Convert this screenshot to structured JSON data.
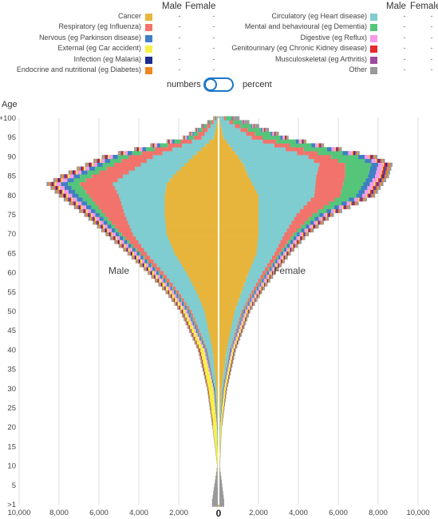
{
  "legend": {
    "col_male": "Male",
    "col_female": "Female",
    "left": [
      {
        "label": "Cancer",
        "color": "#e8b53c",
        "male": "-",
        "female": "-"
      },
      {
        "label": "Respiratory (eg Influenza)",
        "color": "#f2736b",
        "male": "-",
        "female": "-"
      },
      {
        "label": "Nervous (eg Parkinson disease)",
        "color": "#3f7fc3",
        "male": "-",
        "female": "-"
      },
      {
        "label": "External (eg Car accident)",
        "color": "#f8f04a",
        "male": "-",
        "female": "-"
      },
      {
        "label": "Infection (eg Malaria)",
        "color": "#1b2c8c",
        "male": "-",
        "female": "-"
      },
      {
        "label": "Endocrine and nutritional (eg Diabetes)",
        "color": "#f0861f",
        "male": "-",
        "female": "-"
      }
    ],
    "right": [
      {
        "label": "Circulatory (eg Heart disease)",
        "color": "#7fcdd0",
        "male": "-",
        "female": "-"
      },
      {
        "label": "Mental and behavioural (eg Dementia)",
        "color": "#55c57a",
        "male": "-",
        "female": "-"
      },
      {
        "label": "Digestive (eg Reflux)",
        "color": "#f69ae8",
        "male": "-",
        "female": "-"
      },
      {
        "label": "Genitourinary (eg Chronic Kidney disease)",
        "color": "#e8282b",
        "male": "-",
        "female": "-"
      },
      {
        "label": "Musculoskeletal (eg Arthritis)",
        "color": "#9c4b9e",
        "male": "-",
        "female": "-"
      },
      {
        "label": "Other",
        "color": "#999999",
        "male": "-",
        "female": "-"
      }
    ]
  },
  "toggle": {
    "left_label": "numbers",
    "right_label": "percent",
    "state": "numbers"
  },
  "chart_data": {
    "type": "bar",
    "orientation": "horizontal-population-pyramid",
    "ylabel": "Age",
    "y_ticks": [
      "+100",
      "95",
      "90",
      "85",
      "80",
      "75",
      "70",
      "65",
      "60",
      "55",
      "50",
      "45",
      "40",
      "35",
      "30",
      "25",
      "20",
      "15",
      "10",
      "5",
      ">1"
    ],
    "x_ticks_left": [
      "10,000",
      "8,000",
      "6,000",
      "4,000",
      "2,000"
    ],
    "x_ticks_right": [
      "2,000",
      "4,000",
      "6,000",
      "8,000",
      "10,000"
    ],
    "x_zero": "0",
    "xlim": [
      -10000,
      10000
    ],
    "ylim": [
      0,
      100
    ],
    "side_labels": {
      "left": "Male",
      "right": "Female"
    },
    "grid": true,
    "categories": [
      "Cancer",
      "Circulatory",
      "Respiratory",
      "Mental",
      "Nervous",
      "Digestive",
      "External",
      "Genitourinary",
      "Infection",
      "Musculoskeletal",
      "Endocrine",
      "Other"
    ],
    "series_colors": {
      "Cancer": "#e8b53c",
      "Circulatory": "#7fcdd0",
      "Respiratory": "#f2736b",
      "Mental": "#55c57a",
      "Nervous": "#3f7fc3",
      "Digestive": "#f69ae8",
      "External": "#f8f04a",
      "Genitourinary": "#e8282b",
      "Infection": "#1b2c8c",
      "Musculoskeletal": "#9c4b9e",
      "Endocrine": "#f0861f",
      "Other": "#999999"
    },
    "male": [
      {
        "age": 1,
        "values": [
          30,
          0,
          0,
          0,
          0,
          0,
          0,
          0,
          0,
          0,
          0,
          300
        ]
      },
      {
        "age": 10,
        "values": [
          20,
          0,
          0,
          0,
          10,
          0,
          30,
          0,
          0,
          0,
          0,
          10
        ]
      },
      {
        "age": 20,
        "values": [
          40,
          20,
          0,
          0,
          20,
          0,
          200,
          0,
          0,
          0,
          0,
          30
        ]
      },
      {
        "age": 30,
        "values": [
          100,
          80,
          10,
          10,
          40,
          30,
          250,
          10,
          10,
          0,
          10,
          30
        ]
      },
      {
        "age": 40,
        "values": [
          300,
          250,
          40,
          30,
          50,
          60,
          200,
          10,
          20,
          10,
          30,
          40
        ]
      },
      {
        "age": 50,
        "values": [
          700,
          650,
          90,
          50,
          80,
          90,
          120,
          20,
          30,
          10,
          40,
          50
        ]
      },
      {
        "age": 55,
        "values": [
          1100,
          900,
          120,
          40,
          90,
          110,
          110,
          30,
          30,
          20,
          50,
          60
        ]
      },
      {
        "age": 60,
        "values": [
          1600,
          1150,
          200,
          60,
          110,
          120,
          90,
          30,
          40,
          30,
          60,
          70
        ]
      },
      {
        "age": 65,
        "values": [
          2200,
          1400,
          300,
          80,
          130,
          140,
          70,
          40,
          40,
          30,
          60,
          80
        ]
      },
      {
        "age": 70,
        "values": [
          2600,
          1700,
          550,
          140,
          180,
          150,
          60,
          50,
          50,
          30,
          70,
          90
        ]
      },
      {
        "age": 75,
        "values": [
          2700,
          2000,
          1000,
          260,
          220,
          170,
          60,
          60,
          50,
          40,
          80,
          100
        ]
      },
      {
        "age": 80,
        "values": [
          2700,
          2300,
          1500,
          520,
          320,
          220,
          70,
          70,
          60,
          50,
          90,
          120
        ]
      },
      {
        "age": 83,
        "values": [
          2600,
          2700,
          1650,
          600,
          360,
          240,
          80,
          80,
          60,
          50,
          90,
          120
        ]
      },
      {
        "age": 85,
        "values": [
          2300,
          2500,
          1550,
          600,
          320,
          220,
          80,
          80,
          60,
          50,
          80,
          110
        ]
      },
      {
        "age": 90,
        "values": [
          1300,
          2000,
          1200,
          550,
          260,
          180,
          60,
          60,
          50,
          40,
          70,
          90
        ]
      },
      {
        "age": 95,
        "values": [
          250,
          600,
          400,
          260,
          80,
          60,
          20,
          20,
          20,
          20,
          30,
          40
        ]
      },
      {
        "age": 100,
        "values": [
          30,
          70,
          60,
          40,
          10,
          10,
          0,
          0,
          0,
          0,
          10,
          40
        ]
      }
    ],
    "female": [
      {
        "age": 1,
        "values": [
          30,
          0,
          0,
          0,
          0,
          0,
          0,
          0,
          0,
          0,
          0,
          250
        ]
      },
      {
        "age": 10,
        "values": [
          20,
          0,
          0,
          0,
          10,
          0,
          20,
          0,
          0,
          0,
          0,
          10
        ]
      },
      {
        "age": 20,
        "values": [
          40,
          20,
          0,
          0,
          10,
          0,
          70,
          0,
          0,
          0,
          0,
          20
        ]
      },
      {
        "age": 30,
        "values": [
          150,
          60,
          10,
          10,
          30,
          20,
          90,
          10,
          10,
          0,
          10,
          30
        ]
      },
      {
        "age": 40,
        "values": [
          400,
          150,
          30,
          20,
          40,
          50,
          80,
          10,
          20,
          10,
          20,
          40
        ]
      },
      {
        "age": 50,
        "values": [
          800,
          350,
          70,
          40,
          60,
          80,
          60,
          20,
          20,
          10,
          30,
          50
        ]
      },
      {
        "age": 55,
        "values": [
          1150,
          500,
          110,
          40,
          70,
          90,
          50,
          20,
          30,
          20,
          40,
          60
        ]
      },
      {
        "age": 60,
        "values": [
          1500,
          700,
          180,
          50,
          90,
          100,
          50,
          30,
          30,
          20,
          50,
          70
        ]
      },
      {
        "age": 65,
        "values": [
          1900,
          900,
          250,
          80,
          110,
          110,
          50,
          40,
          30,
          30,
          50,
          70
        ]
      },
      {
        "age": 70,
        "values": [
          2000,
          1300,
          450,
          160,
          160,
          130,
          40,
          50,
          40,
          40,
          60,
          90
        ]
      },
      {
        "age": 75,
        "values": [
          2000,
          1900,
          800,
          350,
          210,
          150,
          40,
          60,
          50,
          50,
          70,
          100
        ]
      },
      {
        "age": 80,
        "values": [
          2000,
          2800,
          1300,
          800,
          300,
          210,
          50,
          80,
          60,
          60,
          80,
          110
        ]
      },
      {
        "age": 85,
        "values": [
          1500,
          3400,
          1450,
          1150,
          340,
          240,
          50,
          90,
          60,
          60,
          80,
          120
        ]
      },
      {
        "age": 88,
        "values": [
          1250,
          3800,
          1300,
          1300,
          350,
          240,
          50,
          90,
          60,
          70,
          90,
          120
        ]
      },
      {
        "age": 90,
        "values": [
          1000,
          3500,
          1150,
          1350,
          320,
          220,
          40,
          80,
          50,
          60,
          80,
          110
        ]
      },
      {
        "age": 95,
        "values": [
          250,
          1400,
          550,
          900,
          100,
          90,
          20,
          40,
          30,
          30,
          40,
          60
        ]
      },
      {
        "age": 100,
        "values": [
          40,
          220,
          100,
          300,
          20,
          20,
          0,
          10,
          10,
          10,
          20,
          300
        ]
      }
    ]
  }
}
